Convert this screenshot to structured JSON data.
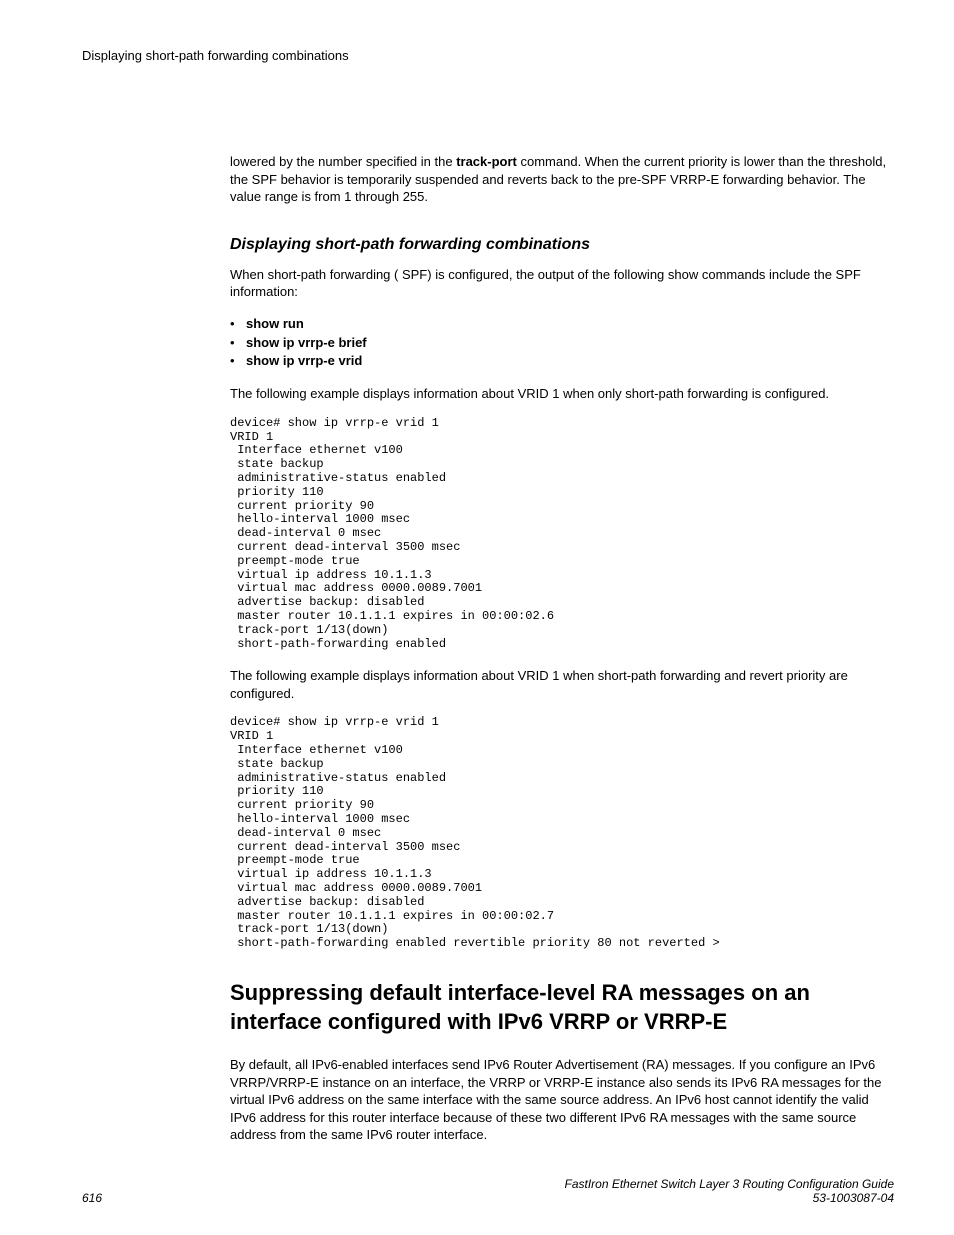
{
  "runningHead": "Displaying short-path forwarding combinations",
  "introPara": {
    "pre": "lowered by the number specified in the ",
    "bold": "track-port",
    "post": " command. When the current priority is lower than the threshold, the SPF behavior is temporarily suspended and reverts back to the pre-SPF VRRP-E forwarding behavior. The value range is from 1 through 255."
  },
  "section1": {
    "heading": "Displaying short-path forwarding combinations",
    "p1": "When short-path forwarding ( SPF) is configured, the output of the following show commands include the SPF information:",
    "bullets": [
      "show run",
      "show ip vrrp-e brief",
      "show ip vrrp-e vrid"
    ],
    "p2": "The following example displays information about VRID 1 when only short-path forwarding is configured.",
    "cli1": "device# show ip vrrp-e vrid 1\nVRID 1\n Interface ethernet v100\n state backup\n administrative-status enabled\n priority 110\n current priority 90\n hello-interval 1000 msec\n dead-interval 0 msec\n current dead-interval 3500 msec\n preempt-mode true\n virtual ip address 10.1.1.3\n virtual mac address 0000.0089.7001\n advertise backup: disabled\n master router 10.1.1.1 expires in 00:00:02.6\n track-port 1/13(down)\n short-path-forwarding enabled",
    "p3": "The following example displays information about VRID 1 when short-path forwarding and revert priority are configured.",
    "cli2": "device# show ip vrrp-e vrid 1\nVRID 1\n Interface ethernet v100\n state backup\n administrative-status enabled\n priority 110\n current priority 90\n hello-interval 1000 msec\n dead-interval 0 msec\n current dead-interval 3500 msec\n preempt-mode true\n virtual ip address 10.1.1.3\n virtual mac address 0000.0089.7001\n advertise backup: disabled\n master router 10.1.1.1 expires in 00:00:02.7\n track-port 1/13(down)\n short-path-forwarding enabled revertible priority 80 not reverted >"
  },
  "section2": {
    "heading": "Suppressing default interface-level RA messages on an interface configured with IPv6 VRRP or VRRP-E",
    "p1": "By default, all IPv6-enabled interfaces send IPv6 Router Advertisement (RA) messages. If you configure an IPv6 VRRP/VRRP-E instance on an interface, the VRRP or VRRP-E instance also sends its IPv6 RA messages for the virtual IPv6 address on the same interface with the same source address. An IPv6 host cannot identify the valid IPv6 address for this router interface because of these two different IPv6 RA messages with the same source address from the same IPv6 router interface."
  },
  "footer": {
    "pageNum": "616",
    "title": "FastIron Ethernet Switch Layer 3 Routing Configuration Guide",
    "docNum": "53-1003087-04"
  }
}
